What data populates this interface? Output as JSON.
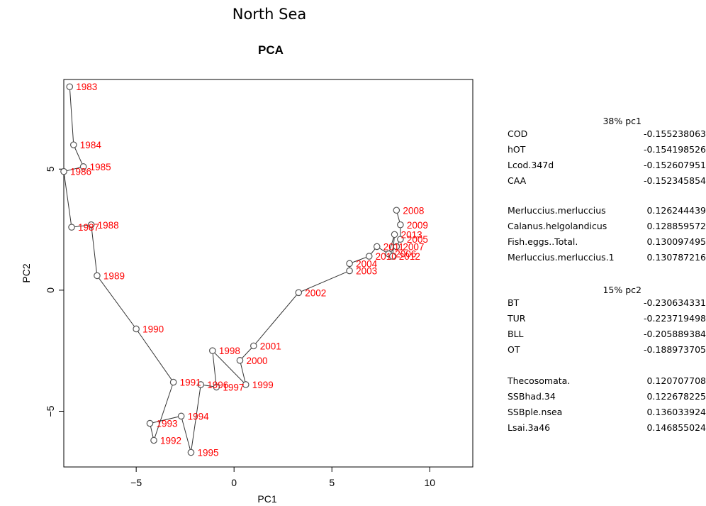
{
  "page": {
    "suptitle": "North Sea"
  },
  "chart_data": {
    "type": "scatter",
    "title": "PCA",
    "xlabel": "PC1",
    "ylabel": "PC2",
    "xlim": [
      -8.7,
      12.2
    ],
    "ylim": [
      -7.3,
      8.7
    ],
    "xticks": [
      -5,
      0,
      5,
      10
    ],
    "yticks": [
      -5,
      0,
      5
    ],
    "grid": false,
    "point_color": "#555555",
    "label_color": "#ff0000",
    "line_color": "#333333",
    "points": [
      {
        "label": "1983",
        "x": -8.4,
        "y": 8.4
      },
      {
        "label": "1984",
        "x": -8.2,
        "y": 6.0
      },
      {
        "label": "1985",
        "x": -7.7,
        "y": 5.1
      },
      {
        "label": "1986",
        "x": -8.7,
        "y": 4.9
      },
      {
        "label": "1987",
        "x": -8.3,
        "y": 2.6
      },
      {
        "label": "1988",
        "x": -7.3,
        "y": 2.7
      },
      {
        "label": "1989",
        "x": -7.0,
        "y": 0.6
      },
      {
        "label": "1990",
        "x": -5.0,
        "y": -1.6
      },
      {
        "label": "1991",
        "x": -3.1,
        "y": -3.8
      },
      {
        "label": "1992",
        "x": -4.1,
        "y": -6.2
      },
      {
        "label": "1993",
        "x": -4.3,
        "y": -5.5
      },
      {
        "label": "1994",
        "x": -2.7,
        "y": -5.2
      },
      {
        "label": "1995",
        "x": -2.2,
        "y": -6.7
      },
      {
        "label": "1996",
        "x": -1.7,
        "y": -3.9
      },
      {
        "label": "1997",
        "x": -0.9,
        "y": -4.0
      },
      {
        "label": "1998",
        "x": -1.1,
        "y": -2.5
      },
      {
        "label": "1999",
        "x": 0.6,
        "y": -3.9
      },
      {
        "label": "2000",
        "x": 0.3,
        "y": -2.9
      },
      {
        "label": "2001",
        "x": 1.0,
        "y": -2.3
      },
      {
        "label": "2002",
        "x": 3.3,
        "y": -0.1
      },
      {
        "label": "2003",
        "x": 5.9,
        "y": 0.8
      },
      {
        "label": "2004",
        "x": 5.9,
        "y": 1.1
      },
      {
        "label": "2005",
        "x": 8.5,
        "y": 2.1
      },
      {
        "label": "2006",
        "x": 7.9,
        "y": 1.5
      },
      {
        "label": "2007",
        "x": 8.3,
        "y": 1.8
      },
      {
        "label": "2008",
        "x": 8.3,
        "y": 3.3
      },
      {
        "label": "2009",
        "x": 8.5,
        "y": 2.7
      },
      {
        "label": "2010",
        "x": 6.9,
        "y": 1.4
      },
      {
        "label": "2011",
        "x": 7.3,
        "y": 1.8
      },
      {
        "label": "2012",
        "x": 8.1,
        "y": 1.4
      },
      {
        "label": "2013",
        "x": 8.2,
        "y": 2.3
      }
    ],
    "path": [
      "1983",
      "1984",
      "1985",
      "1986",
      "1987",
      "1988",
      "1989",
      "1990",
      "1991",
      "1992",
      "1993",
      "1994",
      "1995",
      "1996",
      "1997",
      "1998",
      "1999",
      "2000",
      "2001",
      "2002",
      "2003",
      "2004",
      "2010",
      "2011",
      "2012",
      "2013",
      "2006",
      "2007",
      "2005",
      "2009",
      "2008"
    ]
  },
  "loadings": {
    "pc1": {
      "header": "38% pc1",
      "negative": [
        {
          "name": "COD",
          "value": "-0.155238063"
        },
        {
          "name": "hOT",
          "value": "-0.154198526"
        },
        {
          "name": "Lcod.347d",
          "value": "-0.152607951"
        },
        {
          "name": "CAA",
          "value": "-0.152345854"
        }
      ],
      "positive": [
        {
          "name": "Merluccius.merluccius",
          "value": "0.126244439"
        },
        {
          "name": "Calanus.helgolandicus",
          "value": "0.128859572"
        },
        {
          "name": "Fish.eggs..Total.",
          "value": "0.130097495"
        },
        {
          "name": "Merluccius.merluccius.1",
          "value": "0.130787216"
        }
      ]
    },
    "pc2": {
      "header": "15% pc2",
      "negative": [
        {
          "name": "BT",
          "value": "-0.230634331"
        },
        {
          "name": "TUR",
          "value": "-0.223719498"
        },
        {
          "name": "BLL",
          "value": "-0.205889384"
        },
        {
          "name": "OT",
          "value": "-0.188973705"
        }
      ],
      "positive": [
        {
          "name": "Thecosomata.",
          "value": "0.120707708"
        },
        {
          "name": "SSBhad.34",
          "value": "0.122678225"
        },
        {
          "name": "SSBple.nsea",
          "value": "0.136033924"
        },
        {
          "name": "Lsai.3a46",
          "value": "0.146855024"
        }
      ]
    }
  }
}
